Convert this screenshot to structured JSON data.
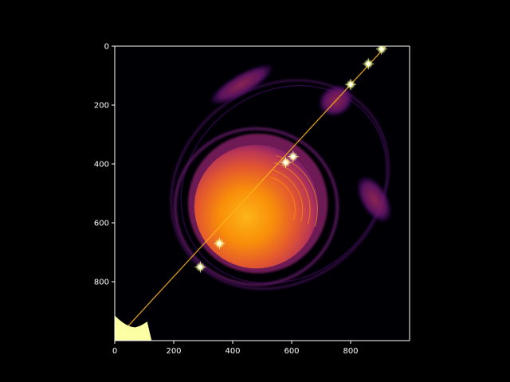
{
  "chart_data": {
    "type": "heatmap",
    "title": "",
    "xlabel": "",
    "ylabel": "",
    "colormap": "inferno",
    "xlim": [
      0,
      1000
    ],
    "ylim": [
      1000,
      0
    ],
    "y_inverted": true,
    "grid": false,
    "x_ticks": [
      {
        "value": 0,
        "label": "0"
      },
      {
        "value": 200,
        "label": "200"
      },
      {
        "value": 400,
        "label": "400"
      },
      {
        "value": 600,
        "label": "600"
      },
      {
        "value": 800,
        "label": "800"
      }
    ],
    "y_ticks": [
      {
        "value": 0,
        "label": "0"
      },
      {
        "value": 200,
        "label": "200"
      },
      {
        "value": 400,
        "label": "400"
      },
      {
        "value": 600,
        "label": "600"
      },
      {
        "value": 800,
        "label": "800"
      }
    ],
    "features": {
      "central_disc": {
        "center": [
          480,
          545
        ],
        "radius": 210
      },
      "inner_ring": {
        "center": [
          480,
          545
        ],
        "rx": 275,
        "ry": 265
      },
      "outer_ring": {
        "center": [
          560,
          470
        ],
        "rx": 390,
        "ry": 330
      },
      "lobes": [
        {
          "center": [
            750,
            185
          ],
          "rx": 60,
          "ry": 50
        },
        {
          "center": [
            880,
            520
          ],
          "rx": 45,
          "ry": 85
        },
        {
          "center": [
            430,
            130
          ],
          "rx": 120,
          "ry": 35
        }
      ],
      "diagonal_line": {
        "from": [
          0,
          1000
        ],
        "to": [
          920,
          0
        ]
      },
      "bright_knots": [
        [
          905,
          10
        ],
        [
          860,
          60
        ],
        [
          800,
          130
        ],
        [
          605,
          375
        ],
        [
          580,
          395
        ],
        [
          355,
          670
        ],
        [
          290,
          750
        ]
      ],
      "corner_blob": {
        "center": [
          60,
          985
        ]
      }
    }
  },
  "colors": {
    "background": "#000000",
    "plot_background": "#000004",
    "axis": "#ffffff",
    "disc_core": "#f98e09",
    "disc_edge": "#bc3754",
    "ring": "#57106e",
    "knot": "#fcffa4"
  }
}
